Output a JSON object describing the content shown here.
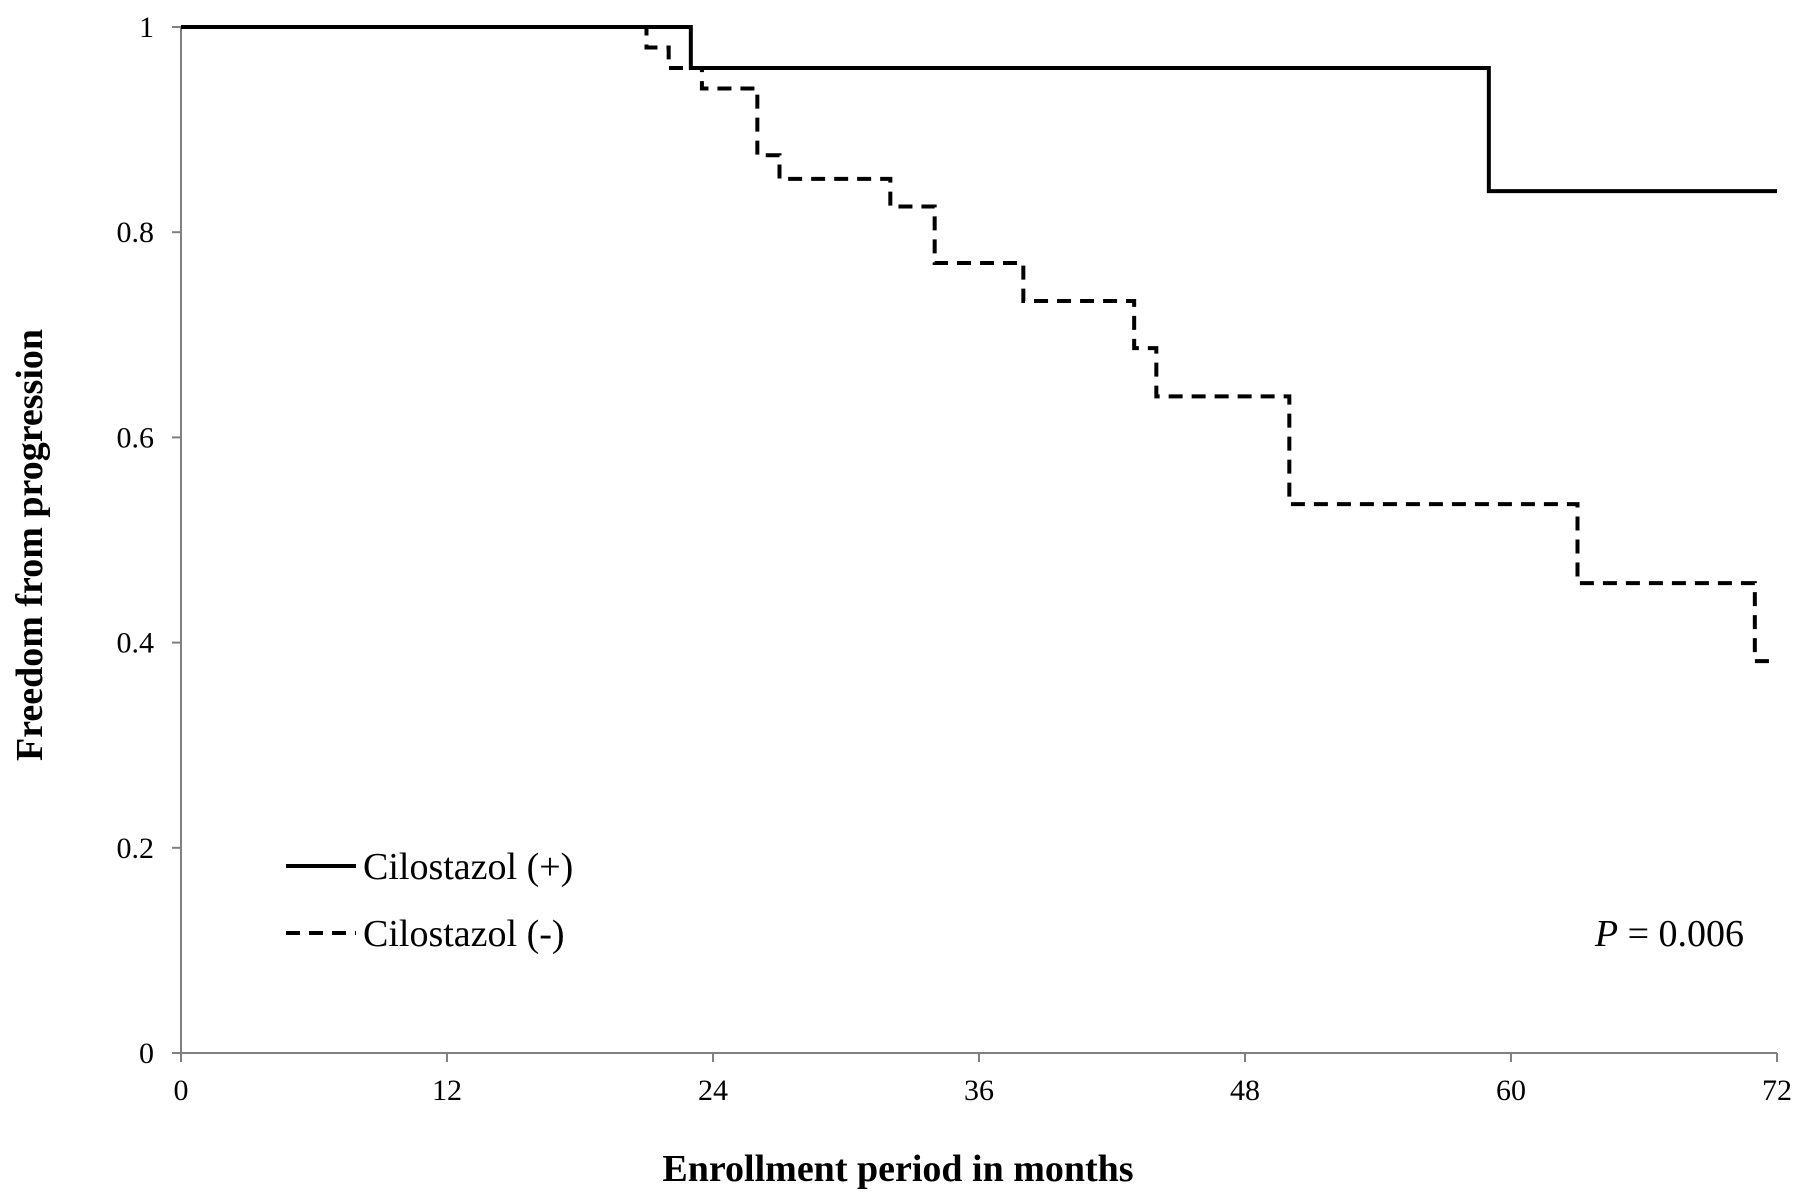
{
  "chart_data": {
    "type": "line",
    "step": true,
    "xlabel": "Enrollment period in months",
    "ylabel": "Freedom from progression",
    "xlim": [
      0,
      72
    ],
    "ylim": [
      0,
      1
    ],
    "xticks": [
      "0",
      "12",
      "24",
      "36",
      "48",
      "60",
      "72"
    ],
    "yticks": [
      "0",
      "0.2",
      "0.4",
      "0.6",
      "0.8",
      "1"
    ],
    "grid": false,
    "legend_position": "bottom-left",
    "annotation": {
      "italic": "P",
      "rest": " = 0.006"
    },
    "series": [
      {
        "name": "Cilostazol (+)",
        "style": "solid",
        "color": "#000000",
        "x": [
          0,
          23,
          59,
          72
        ],
        "y": [
          1.0,
          0.96,
          0.84,
          0.84
        ]
      },
      {
        "name": "Cilostazol (-)",
        "style": "dashed",
        "color": "#000000",
        "x": [
          0,
          21,
          22,
          23.5,
          26,
          27,
          32,
          34,
          38,
          43,
          44,
          50,
          63,
          71,
          72
        ],
        "y": [
          1.0,
          0.98,
          0.96,
          0.94,
          0.875,
          0.852,
          0.825,
          0.77,
          0.733,
          0.687,
          0.64,
          0.535,
          0.458,
          0.382,
          0.382
        ]
      }
    ]
  }
}
